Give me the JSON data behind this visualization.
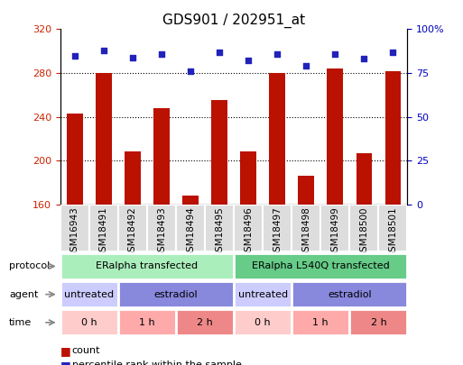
{
  "title": "GDS901 / 202951_at",
  "samples": [
    "GSM16943",
    "GSM18491",
    "GSM18492",
    "GSM18493",
    "GSM18494",
    "GSM18495",
    "GSM18496",
    "GSM18497",
    "GSM18498",
    "GSM18499",
    "GSM18500",
    "GSM18501"
  ],
  "counts": [
    243,
    280,
    208,
    248,
    168,
    255,
    208,
    280,
    186,
    284,
    207,
    282
  ],
  "percentile_ranks": [
    85,
    88,
    84,
    86,
    76,
    87,
    82,
    86,
    79,
    86,
    83,
    87
  ],
  "ylim_left": [
    160,
    320
  ],
  "ylim_right": [
    0,
    100
  ],
  "yticks_left": [
    160,
    200,
    240,
    280,
    320
  ],
  "yticks_right": [
    0,
    25,
    50,
    75,
    100
  ],
  "bar_color": "#BB1100",
  "dot_color": "#2222BB",
  "bar_width": 0.55,
  "grid_lines": [
    200,
    240,
    280
  ],
  "protocol_groups": [
    {
      "label": "ERalpha transfected",
      "start": 0,
      "end": 5,
      "color": "#AAEEBB"
    },
    {
      "label": "ERalpha L540Q transfected",
      "start": 6,
      "end": 11,
      "color": "#66CC88"
    }
  ],
  "agent_groups": [
    {
      "label": "untreated",
      "start": 0,
      "end": 1,
      "color": "#CCCCFF"
    },
    {
      "label": "estradiol",
      "start": 2,
      "end": 5,
      "color": "#8888DD"
    },
    {
      "label": "untreated",
      "start": 6,
      "end": 7,
      "color": "#CCCCFF"
    },
    {
      "label": "estradiol",
      "start": 8,
      "end": 11,
      "color": "#8888DD"
    }
  ],
  "time_groups": [
    {
      "label": "0 h",
      "start": 0,
      "end": 1,
      "color": "#FFCCCC"
    },
    {
      "label": "1 h",
      "start": 2,
      "end": 3,
      "color": "#FFAAAA"
    },
    {
      "label": "2 h",
      "start": 4,
      "end": 5,
      "color": "#EE8888"
    },
    {
      "label": "0 h",
      "start": 6,
      "end": 7,
      "color": "#FFCCCC"
    },
    {
      "label": "1 h",
      "start": 8,
      "end": 9,
      "color": "#FFAAAA"
    },
    {
      "label": "2 h",
      "start": 10,
      "end": 11,
      "color": "#EE8888"
    }
  ],
  "legend_count_color": "#BB1100",
  "legend_pct_color": "#2222BB",
  "tick_label_color_left": "#CC2200",
  "tick_label_color_right": "#0000BB",
  "xtick_bg_color": "#CCCCCC",
  "row_label_color": "#555555"
}
